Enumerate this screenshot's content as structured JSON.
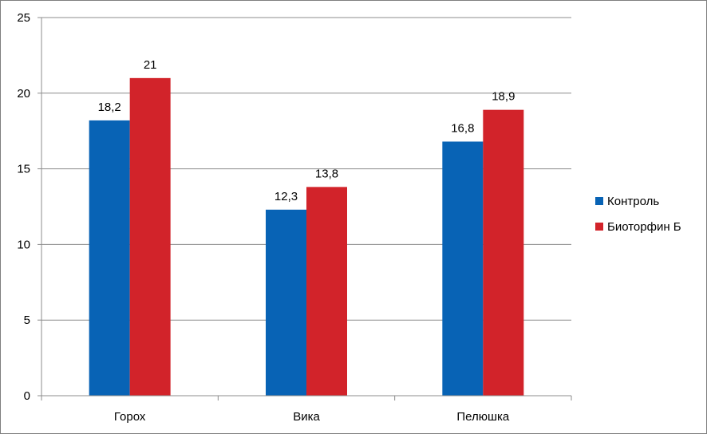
{
  "chart_data": {
    "type": "bar",
    "categories": [
      "Горох",
      "Вика",
      "Пелюшка"
    ],
    "series": [
      {
        "name": "Контроль",
        "values": [
          18.2,
          12.3,
          16.8
        ],
        "labels": [
          "18,2",
          "12,3",
          "16,8"
        ],
        "color": "#0863b5"
      },
      {
        "name": "Биоторфин Б",
        "values": [
          21,
          13.8,
          18.9
        ],
        "labels": [
          "21",
          "13,8",
          "18,9"
        ],
        "color": "#d2232a"
      }
    ],
    "ylim": [
      0,
      25
    ],
    "yticks": [
      0,
      5,
      10,
      15,
      20,
      25
    ],
    "grid": true,
    "legend": "right",
    "title": "",
    "xlabel": "",
    "ylabel": ""
  }
}
